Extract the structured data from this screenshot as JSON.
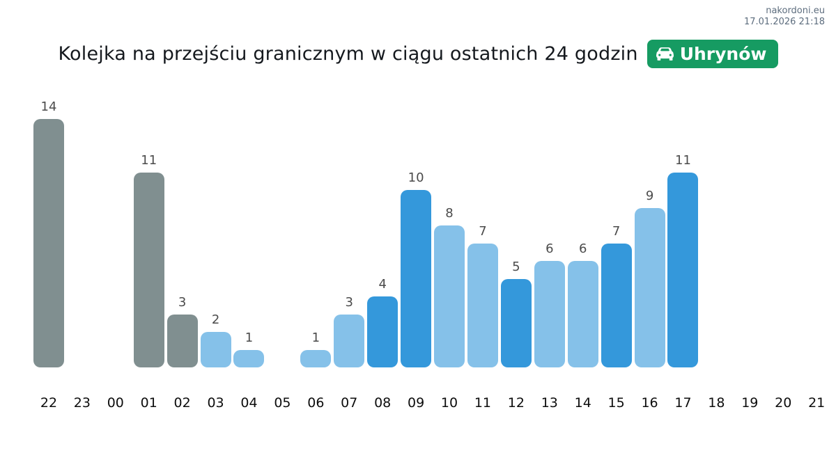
{
  "header": {
    "site": "nakordoni.eu",
    "timestamp": "17.01.2026 21:18"
  },
  "title": "Kolejka na przejściu granicznym w ciągu ostatnich 24 godzin",
  "badge": {
    "label": "Uhrynów",
    "icon": "car-front-icon",
    "color": "#169b62"
  },
  "colors": {
    "gray": "#808f90",
    "light_blue": "#85c1e9",
    "dark_blue": "#3498db",
    "badge_green": "#169b62"
  },
  "chart_data": {
    "type": "bar",
    "title": "Kolejka na przejściu granicznym w ciągu ostatnich 24 godzin",
    "categories": [
      "22",
      "23",
      "00",
      "01",
      "02",
      "03",
      "04",
      "05",
      "06",
      "07",
      "08",
      "09",
      "10",
      "11",
      "12",
      "13",
      "14",
      "15",
      "16",
      "17",
      "18",
      "19",
      "20",
      "21"
    ],
    "values": [
      14,
      null,
      null,
      11,
      3,
      2,
      1,
      null,
      1,
      3,
      4,
      10,
      8,
      7,
      5,
      6,
      6,
      7,
      9,
      11,
      null,
      null,
      null,
      null
    ],
    "bar_colors": [
      "gray",
      null,
      null,
      "gray",
      "gray",
      "light_blue",
      "light_blue",
      null,
      "light_blue",
      "light_blue",
      "dark_blue",
      "dark_blue",
      "light_blue",
      "light_blue",
      "dark_blue",
      "light_blue",
      "light_blue",
      "dark_blue",
      "light_blue",
      "dark_blue",
      null,
      null,
      null,
      null
    ],
    "xlabel": "",
    "ylabel": "",
    "ylim": [
      0,
      14
    ],
    "grid": false,
    "legend": false,
    "value_labels_shown": true
  }
}
